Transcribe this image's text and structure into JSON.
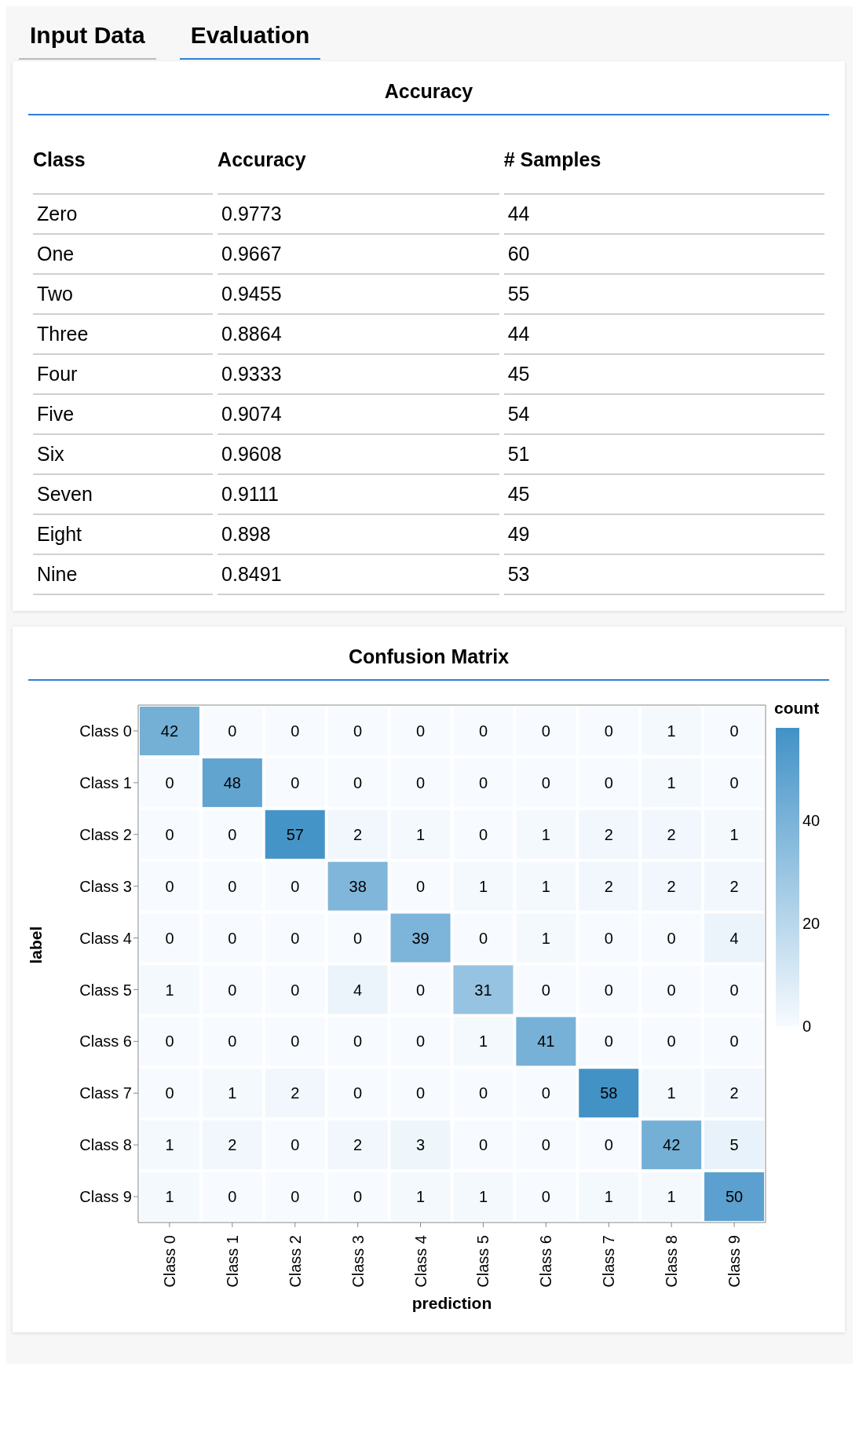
{
  "chart_data": [
    {
      "type": "other",
      "title": "Accuracy",
      "annotations": [
        "Input Data",
        "Evaluation"
      ],
      "xlabel": "Class",
      "categories": [
        "Zero",
        "One",
        "Two",
        "Three",
        "Four",
        "Five",
        "Six",
        "Seven",
        "Eight",
        "Nine"
      ],
      "data_labels": true,
      "series": [
        {
          "name": "Accuracy",
          "values": [
            0.9773,
            0.9667,
            0.9455,
            0.8864,
            0.9333,
            0.9074,
            0.9608,
            0.9111,
            0.898,
            0.8491
          ]
        },
        {
          "name": "# Samples",
          "values": [
            44,
            60,
            55,
            44,
            45,
            54,
            51,
            45,
            49,
            53
          ]
        }
      ]
    },
    {
      "type": "heatmap",
      "title": "Confusion Matrix",
      "xlabel": "prediction",
      "ylabel": "label",
      "clabel": "count",
      "data_labels": true,
      "categories": [
        "Class 0",
        "Class 1",
        "Class 2",
        "Class 3",
        "Class 4",
        "Class 5",
        "Class 6",
        "Class 7",
        "Class 8",
        "Class 9"
      ],
      "y_categories": [
        "Class 0",
        "Class 1",
        "Class 2",
        "Class 3",
        "Class 4",
        "Class 5",
        "Class 6",
        "Class 7",
        "Class 8",
        "Class 9"
      ],
      "cells": [
        [
          42,
          0,
          0,
          0,
          0,
          0,
          0,
          0,
          1,
          0
        ],
        [
          0,
          48,
          0,
          0,
          0,
          0,
          0,
          0,
          1,
          0
        ],
        [
          0,
          0,
          57,
          2,
          1,
          0,
          1,
          2,
          2,
          1
        ],
        [
          0,
          0,
          0,
          38,
          0,
          1,
          1,
          2,
          2,
          2
        ],
        [
          0,
          0,
          0,
          0,
          39,
          0,
          1,
          0,
          0,
          4
        ],
        [
          1,
          0,
          0,
          4,
          0,
          31,
          0,
          0,
          0,
          0
        ],
        [
          0,
          0,
          0,
          0,
          0,
          1,
          41,
          0,
          0,
          0
        ],
        [
          0,
          1,
          2,
          0,
          0,
          0,
          0,
          58,
          1,
          2
        ],
        [
          1,
          2,
          0,
          2,
          3,
          0,
          0,
          0,
          42,
          5
        ],
        [
          1,
          0,
          0,
          0,
          1,
          1,
          0,
          1,
          1,
          50
        ]
      ],
      "clim": [
        0,
        58
      ],
      "cticks": [
        0,
        20,
        40
      ]
    }
  ]
}
